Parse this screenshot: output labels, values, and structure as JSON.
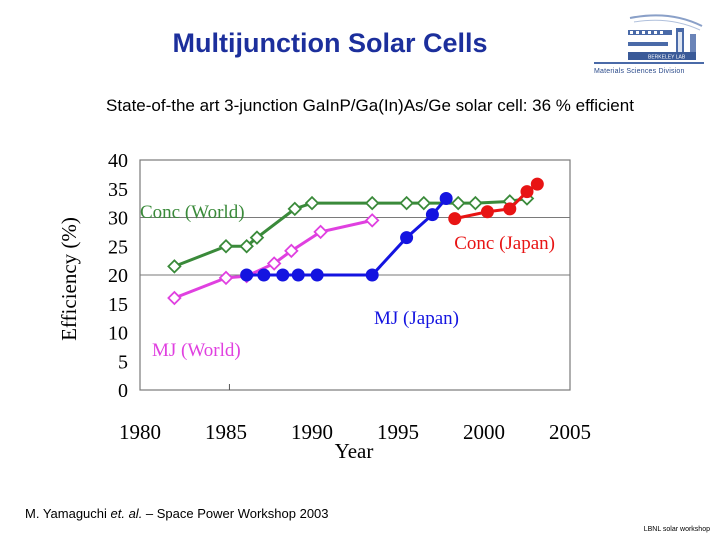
{
  "slide": {
    "title": "Multijunction Solar Cells",
    "subtitle": "State-of-the art 3-junction GaInP/Ga(In)As/Ge solar cell: 36 % efficient",
    "citation_author": "M. Yamaguchi ",
    "citation_etal": "et. al.",
    "citation_rest": " – Space Power Workshop 2003",
    "footer": "LBNL solar workshop",
    "logo_text": "Materials Sciences Division",
    "logo_mini": "BERKELEY LAB"
  },
  "chart_data": {
    "type": "line",
    "xlabel": "Year",
    "ylabel": "Efficiency (%)",
    "xlim": [
      1980,
      2005
    ],
    "ylim": [
      0,
      40
    ],
    "x_ticks": [
      1980,
      1985,
      1990,
      1995,
      2000,
      2005
    ],
    "y_ticks": [
      0,
      5,
      10,
      15,
      20,
      25,
      30,
      35,
      40
    ],
    "gridlines_y": [
      20,
      30
    ],
    "series": [
      {
        "name": "Conc (World)",
        "color": "#3a8a3a",
        "marker": "diamond-open",
        "x": [
          1982,
          1985,
          1986.2,
          1986.8,
          1989,
          1990,
          1993.5,
          1995.5,
          1996.5,
          1998.5,
          1999.5,
          2001.5,
          2002.5
        ],
        "y": [
          21.5,
          25,
          25,
          26.5,
          31.5,
          32.5,
          32.5,
          32.5,
          32.5,
          32.5,
          32.5,
          32.8,
          33.3
        ]
      },
      {
        "name": "MJ (World)",
        "color": "#e040e0",
        "marker": "diamond-open",
        "x": [
          1982,
          1985,
          1986.2,
          1987.8,
          1988.8,
          1990.5,
          1993.5
        ],
        "y": [
          16,
          19.5,
          19.8,
          22,
          24.2,
          27.5,
          29.5
        ]
      },
      {
        "name": "MJ (Japan)",
        "color": "#1414e0",
        "marker": "circle-filled",
        "x": [
          1986.2,
          1987.2,
          1988.3,
          1989.2,
          1990.3,
          1993.5,
          1995.5,
          1997,
          1997.8
        ],
        "y": [
          20,
          20,
          20,
          20,
          20,
          20,
          26.5,
          30.5,
          33.3
        ]
      },
      {
        "name": "Conc (Japan)",
        "color": "#e81414",
        "marker": "circle-filled",
        "x": [
          1998.3,
          2000.2,
          2001.5,
          2002.5,
          2003.1
        ],
        "y": [
          29.8,
          31,
          31.5,
          34.5,
          35.8
        ]
      }
    ],
    "annotations": [
      {
        "text": "Conc (World)",
        "series": "Conc (World)"
      },
      {
        "text": "Conc (Japan)",
        "series": "Conc (Japan)"
      },
      {
        "text": "MJ (Japan)",
        "series": "MJ (Japan)"
      },
      {
        "text": "MJ (World)",
        "series": "MJ (World)"
      }
    ]
  }
}
